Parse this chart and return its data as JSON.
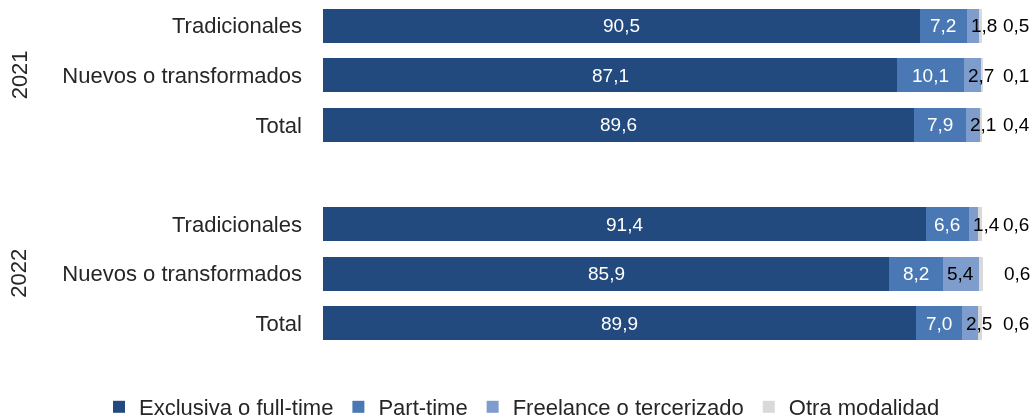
{
  "chart_data": {
    "type": "bar",
    "orientation": "horizontal",
    "stacked": true,
    "legend": "bottom",
    "tick_labels": "y",
    "categories": [
      "Tradicionales",
      "Nuevos o transformados",
      "Total",
      null,
      "Tradicionales",
      "Nuevos o transformados",
      "Total"
    ],
    "annotations": [
      "2021",
      "2022"
    ],
    "series": [
      {
        "name": "Exclusiva o full-time",
        "color": "#224a7e",
        "values": [
          90.5,
          87.1,
          89.6,
          null,
          91.4,
          85.9,
          89.9
        ],
        "value_labels": [
          "90,5",
          "87,1",
          "89,6",
          null,
          "91,4",
          "85,9",
          "89,9"
        ]
      },
      {
        "name": "Part-time",
        "color": "#4a78b4",
        "values": [
          7.2,
          10.1,
          7.9,
          null,
          6.6,
          8.2,
          7.0
        ],
        "value_labels": [
          "7,2",
          "10,1",
          "7,9",
          null,
          "6,6",
          "8,2",
          "7,0"
        ]
      },
      {
        "name": "Freelance o tercerizado",
        "color": "#7f9dcc",
        "values": [
          1.8,
          2.7,
          2.1,
          null,
          1.4,
          5.4,
          2.5
        ],
        "value_labels": [
          "1,8",
          "2,7",
          "2,1",
          null,
          "1,4",
          "5,4",
          "2,5"
        ]
      },
      {
        "name": "Otra modalidad",
        "color": "#d9d9d9",
        "values": [
          0.5,
          0.1,
          0.4,
          null,
          0.6,
          0.6,
          0.6
        ],
        "value_labels": [
          "0,5",
          "0,1",
          "0,4",
          null,
          "0,6",
          "0,6",
          "0,6"
        ]
      }
    ]
  }
}
